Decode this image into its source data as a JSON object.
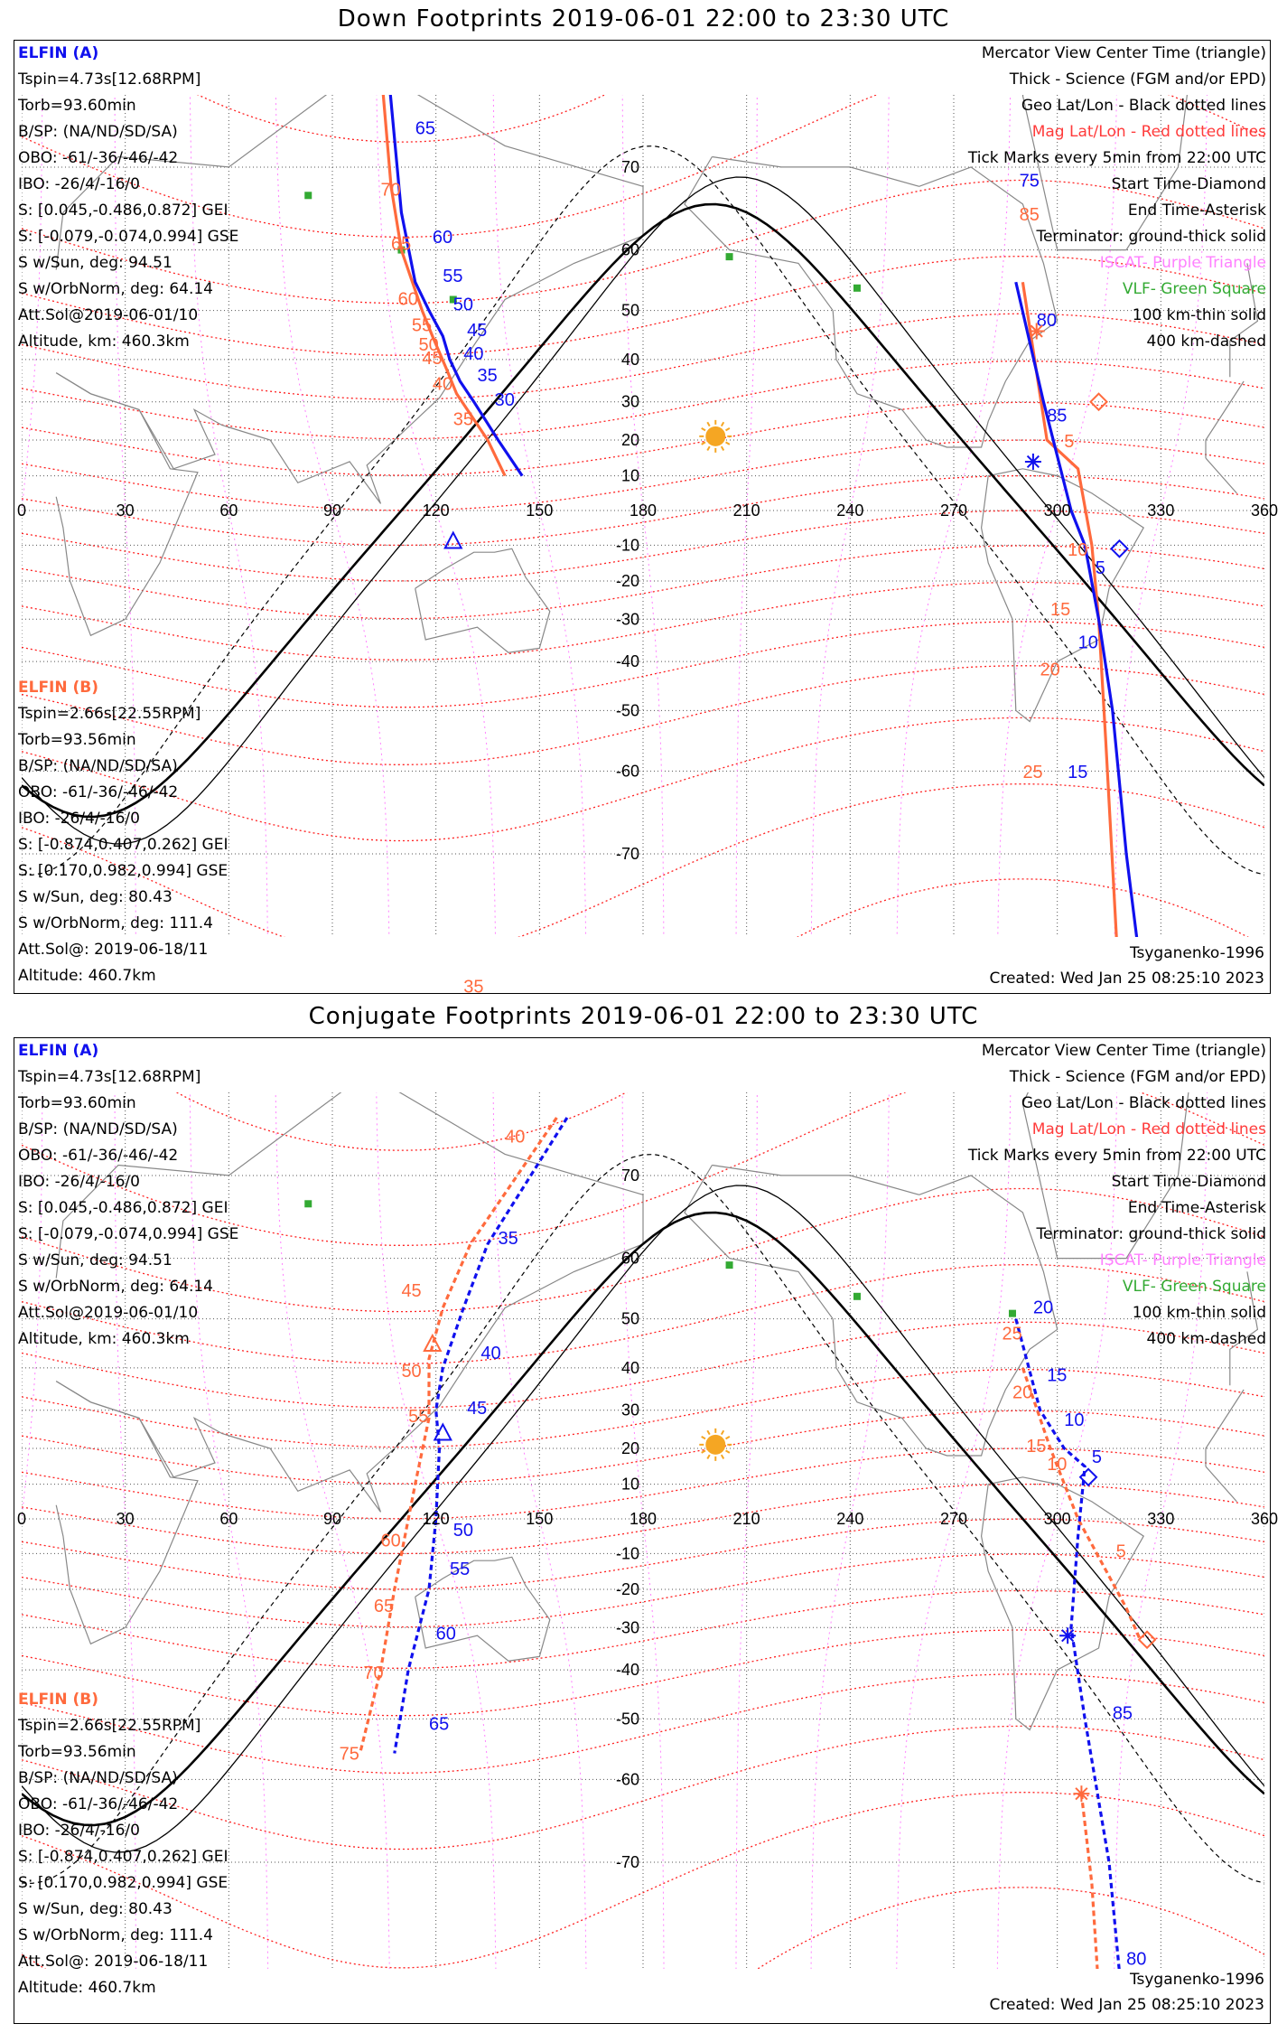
{
  "titles": {
    "top": "Down Footprints 2019-06-01 22:00 to 23:30 UTC",
    "bottom": "Conjugate Footprints 2019-06-01 22:00 to 23:30 UTC"
  },
  "colors": {
    "elfin_a": "#1010ee",
    "elfin_b": "#ff6a3d",
    "mag_grid": "#ff2020",
    "iscat": "#ff80ff",
    "vlf": "#33aa33",
    "sun": "#f5a623"
  },
  "elfin_a": {
    "name": "ELFIN (A)",
    "lines": [
      "Tspin=4.73s[12.68RPM]",
      "Torb=93.60min",
      "B/SP: (NA/ND/SD/SA)",
      "OBO: -61/-36/-46/-42",
      "IBO: -26/4/-16/0",
      "S: [0.045,-0.486,0.872] GEI",
      "S: [-0.079,-0.074,0.994] GSE",
      "S w/Sun, deg: 94.51",
      "S w/OrbNorm, deg: 64.14",
      "Att.Sol@2019-06-01/10",
      "Altitude, km: 460.3km"
    ]
  },
  "elfin_b": {
    "name": "ELFIN (B)",
    "lines": [
      "Tspin=2.66s[22.55RPM]",
      "Torb=93.56min",
      "B/SP: (NA/ND/SD/SA)",
      "OBO: -61/-36/-46/-42",
      "IBO: -26/4/-16/0",
      "S: [-0.874,0.407,0.262] GEI",
      "S: [0.170,0.982,0.994] GSE",
      "S w/Sun, deg: 80.43",
      "S w/OrbNorm, deg: 111.4",
      "Att.Sol@: 2019-06-18/11",
      "Altitude: 460.7km"
    ]
  },
  "legend": [
    {
      "text": "Mercator View Center Time (triangle)",
      "cls": ""
    },
    {
      "text": "Thick - Science (FGM and/or EPD)",
      "cls": ""
    },
    {
      "text": "Geo Lat/Lon - Black dotted lines",
      "cls": ""
    },
    {
      "text": "Mag Lat/Lon - Red dotted lines",
      "cls": "red"
    },
    {
      "text": "Tick Marks every 5min from 22:00 UTC",
      "cls": ""
    },
    {
      "text": "Start Time-Diamond",
      "cls": ""
    },
    {
      "text": "End Time-Asterisk",
      "cls": ""
    },
    {
      "text": "Terminator: ground-thick solid",
      "cls": ""
    },
    {
      "text": "ISCAT- Purple Triangle",
      "cls": "purple"
    },
    {
      "text": "VLF- Green Square",
      "cls": "green"
    },
    {
      "text": "100 km-thin solid",
      "cls": ""
    },
    {
      "text": "400 km-dashed",
      "cls": ""
    }
  ],
  "footer": {
    "model": "Tsyganenko-1996",
    "created": "Created: Wed Jan 25 08:25:10 2023"
  },
  "axes": {
    "lon_ticks": [
      "0",
      "30",
      "60",
      "90",
      "120",
      "150",
      "180",
      "210",
      "240",
      "270",
      "300",
      "330",
      "360"
    ],
    "lat_ticks": [
      {
        "label": "70",
        "lat": 70
      },
      {
        "label": "60",
        "lat": 60
      },
      {
        "label": "50",
        "lat": 50
      },
      {
        "label": "40",
        "lat": 40
      },
      {
        "label": "30",
        "lat": 30
      },
      {
        "label": "20",
        "lat": 20
      },
      {
        "label": "10",
        "lat": 10
      },
      {
        "label": "-10",
        "lat": -10
      },
      {
        "label": "-20",
        "lat": -20
      },
      {
        "label": "-30",
        "lat": -30
      },
      {
        "label": "-40",
        "lat": -40
      },
      {
        "label": "-50",
        "lat": -50
      },
      {
        "label": "-60",
        "lat": -60
      },
      {
        "label": "-70",
        "lat": -70
      }
    ]
  },
  "top_map": {
    "track_a": [
      [
        106,
        78
      ],
      [
        110,
        65
      ],
      [
        114,
        55
      ],
      [
        118,
        50
      ],
      [
        122,
        45
      ],
      [
        124,
        40
      ],
      [
        127,
        35
      ],
      [
        131,
        30
      ],
      [
        138,
        20
      ],
      [
        145,
        10
      ]
    ],
    "track_a_ticks": [
      {
        "label": "65",
        "lon": 114,
        "lat": 73
      },
      {
        "label": "60",
        "lon": 119,
        "lat": 61
      },
      {
        "label": "55",
        "lon": 122,
        "lat": 55
      },
      {
        "label": "50",
        "lon": 125,
        "lat": 50
      },
      {
        "label": "45",
        "lon": 129,
        "lat": 45
      },
      {
        "label": "40",
        "lon": 128,
        "lat": 40
      },
      {
        "label": "35",
        "lon": 132,
        "lat": 35
      },
      {
        "label": "30",
        "lon": 137,
        "lat": 29
      }
    ],
    "track_b": [
      [
        104,
        78
      ],
      [
        107,
        68
      ],
      [
        110,
        60
      ],
      [
        116,
        50
      ],
      [
        119,
        45
      ],
      [
        123,
        38
      ],
      [
        126,
        32
      ],
      [
        135,
        20
      ],
      [
        140,
        10
      ]
    ],
    "track_b_ticks": [
      {
        "label": "70",
        "lon": 104,
        "lat": 67
      },
      {
        "label": "65",
        "lon": 107,
        "lat": 60
      },
      {
        "label": "60",
        "lon": 109,
        "lat": 51
      },
      {
        "label": "55",
        "lon": 113,
        "lat": 46
      },
      {
        "label": "50",
        "lon": 115,
        "lat": 42
      },
      {
        "label": "45",
        "lon": 116,
        "lat": 39
      },
      {
        "label": "40",
        "lon": 119,
        "lat": 33
      },
      {
        "label": "35",
        "lon": 125,
        "lat": 24
      }
    ],
    "track_a2": [
      [
        288,
        55
      ],
      [
        296,
        30
      ],
      [
        304,
        0
      ],
      [
        308,
        -10
      ],
      [
        312,
        -30
      ],
      [
        316,
        -50
      ],
      [
        320,
        -70
      ],
      [
        325,
        -80
      ]
    ],
    "track_a2_ticks": [
      {
        "label": "75",
        "lon": 289,
        "lat": 68
      },
      {
        "label": "80",
        "lon": 294,
        "lat": 47
      },
      {
        "label": "85",
        "lon": 297,
        "lat": 25
      },
      {
        "label": "5",
        "lon": 311,
        "lat": -18
      },
      {
        "label": "10",
        "lon": 306,
        "lat": -37
      },
      {
        "label": "15",
        "lon": 303,
        "lat": -61
      }
    ],
    "track_b2": [
      [
        290,
        55
      ],
      [
        297,
        20
      ],
      [
        306,
        12
      ],
      [
        310,
        -10
      ],
      [
        312,
        -30
      ],
      [
        314,
        -55
      ],
      [
        318,
        -80
      ]
    ],
    "track_b2_ticks": [
      {
        "label": "85",
        "lon": 289,
        "lat": 64
      },
      {
        "label": "5",
        "lon": 302,
        "lat": 18
      },
      {
        "label": "10",
        "lon": 303,
        "lat": -13
      },
      {
        "label": "15",
        "lon": 298,
        "lat": -29
      },
      {
        "label": "20",
        "lon": 295,
        "lat": -43
      },
      {
        "label": "25",
        "lon": 290,
        "lat": -61
      },
      {
        "label": "35",
        "lon": 128,
        "lat": -80
      }
    ]
  },
  "bottom_map": {
    "track_a": [
      [
        158,
        75
      ],
      [
        135,
        62
      ],
      [
        128,
        52
      ],
      [
        122,
        40
      ],
      [
        120,
        30
      ],
      [
        121,
        20
      ],
      [
        120,
        0
      ],
      [
        118,
        -20
      ],
      [
        112,
        -40
      ],
      [
        108,
        -56
      ]
    ],
    "track_a_ticks": [
      {
        "label": "35",
        "lon": 138,
        "lat": 62
      },
      {
        "label": "40",
        "lon": 133,
        "lat": 42
      },
      {
        "label": "45",
        "lon": 129,
        "lat": 29
      },
      {
        "label": "50",
        "lon": 125,
        "lat": -5
      },
      {
        "label": "55",
        "lon": 124,
        "lat": -16
      },
      {
        "label": "60",
        "lon": 120,
        "lat": -33
      },
      {
        "label": "65",
        "lon": 118,
        "lat": -52
      }
    ],
    "track_b": [
      [
        155,
        75
      ],
      [
        130,
        62
      ],
      [
        122,
        52
      ],
      [
        118,
        42
      ],
      [
        118,
        28
      ],
      [
        114,
        10
      ],
      [
        108,
        -20
      ],
      [
        104,
        -40
      ],
      [
        98,
        -56
      ]
    ],
    "track_b_ticks": [
      {
        "label": "40",
        "lon": 140,
        "lat": 73
      },
      {
        "label": "45",
        "lon": 110,
        "lat": 54
      },
      {
        "label": "50",
        "lon": 110,
        "lat": 38
      },
      {
        "label": "55",
        "lon": 112,
        "lat": 27
      },
      {
        "label": "60",
        "lon": 104,
        "lat": -8
      },
      {
        "label": "65",
        "lon": 102,
        "lat": -26
      },
      {
        "label": "70",
        "lon": 99,
        "lat": -42
      },
      {
        "label": "75",
        "lon": 92,
        "lat": -57
      }
    ],
    "track_a2": [
      [
        288,
        50
      ],
      [
        295,
        30
      ],
      [
        302,
        20
      ],
      [
        308,
        15
      ],
      [
        306,
        -5
      ],
      [
        304,
        -30
      ],
      [
        308,
        -50
      ],
      [
        315,
        -70
      ],
      [
        320,
        -82
      ]
    ],
    "track_a2_ticks": [
      {
        "label": "20",
        "lon": 293,
        "lat": 51
      },
      {
        "label": "15",
        "lon": 297,
        "lat": 37
      },
      {
        "label": "10",
        "lon": 302,
        "lat": 26
      },
      {
        "label": "5",
        "lon": 310,
        "lat": 16
      },
      {
        "label": "85",
        "lon": 316,
        "lat": -50
      },
      {
        "label": "80",
        "lon": 320,
        "lat": -78
      }
    ],
    "track_b2": [
      [
        290,
        40
      ],
      [
        298,
        20
      ],
      [
        306,
        0
      ],
      [
        320,
        -25
      ],
      [
        324,
        -33
      ]
    ],
    "track_b2_ticks": [
      {
        "label": "25",
        "lon": 284,
        "lat": 46
      },
      {
        "label": "20",
        "lon": 287,
        "lat": 33
      },
      {
        "label": "15",
        "lon": 291,
        "lat": 19
      },
      {
        "label": "10",
        "lon": 297,
        "lat": 14
      },
      {
        "label": "5",
        "lon": 317,
        "lat": -11
      }
    ],
    "track_b3": [
      [
        307,
        -62
      ],
      [
        310,
        -72
      ],
      [
        313,
        -82
      ]
    ]
  },
  "vlf_sites_top": [
    [
      83,
      67
    ],
    [
      110,
      60
    ],
    [
      205,
      59
    ],
    [
      242,
      54
    ],
    [
      125,
      52
    ]
  ],
  "vlf_sites_bottom": [
    [
      83,
      67
    ],
    [
      205,
      59
    ],
    [
      242,
      54
    ],
    [
      287,
      51
    ]
  ],
  "sun": {
    "lon": 201,
    "lat": 21
  }
}
